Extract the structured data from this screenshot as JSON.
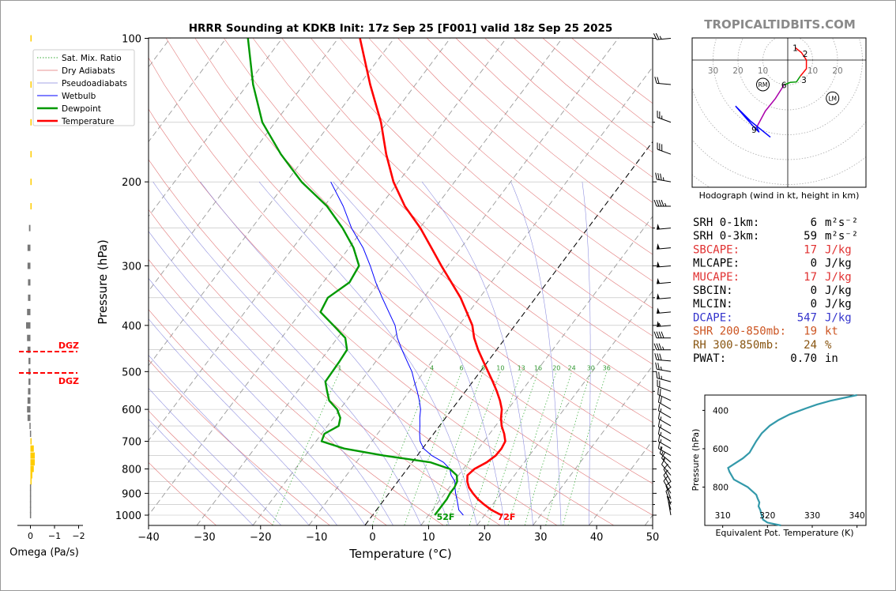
{
  "title": "HRRR Sounding at KDKB Init: 17z Sep 25 [F001] valid 18z Sep 25 2025",
  "brand": "TROPICALTIDBITS.COM",
  "colors": {
    "temperature": "#ff0000",
    "dewpoint": "#009900",
    "wetbulb": "#0000ff",
    "omega_up": "#ffcc00",
    "omega_down": "#777777",
    "dgz": "#ff0000",
    "theta_e": "#3399aa",
    "hodo_0_3": "#ff0000",
    "hodo_3_6": "#009900",
    "hodo_6_9": "#aa00aa",
    "hodo_9": "#0000ff"
  },
  "chart_data": [
    {
      "type": "line",
      "title": "HRRR Sounding at KDKB Init: 17z Sep 25 [F001] valid 18z Sep 25 2025",
      "xlabel": "Temperature (°C)",
      "ylabel": "Pressure (hPa)",
      "xlim": [
        -40,
        50
      ],
      "ylim": [
        1050,
        100
      ],
      "y_scale": "log",
      "skew": true,
      "grid": true,
      "xticks": [
        "−40",
        "−30",
        "−20",
        "−10",
        "0",
        "10",
        "20",
        "30",
        "40",
        "50"
      ],
      "yticks": [
        "100",
        "200",
        "300",
        "400",
        "500",
        "600",
        "700",
        "800",
        "900",
        "1000"
      ],
      "legend": {
        "position": "top-left",
        "entries": [
          "Sat. Mix. Ratio",
          "Dry Adiabats",
          "Pseudoadiabats",
          "Wetbulb",
          "Dewpoint",
          "Temperature"
        ]
      },
      "mixing_ratio_labels": [
        "1",
        "4",
        "6",
        "8",
        "10",
        "13",
        "16",
        "20",
        "24",
        "30",
        "36"
      ],
      "surface_labels": {
        "dewpoint": "52F",
        "temperature": "72F"
      },
      "series": [
        {
          "name": "Temperature",
          "points": [
            [
              1000,
              23
            ],
            [
              975,
              20.5
            ],
            [
              950,
              18.5
            ],
            [
              925,
              16.6
            ],
            [
              900,
              15
            ],
            [
              875,
              13.5
            ],
            [
              850,
              12.4
            ],
            [
              825,
              11.6
            ],
            [
              800,
              12
            ],
            [
              775,
              13.3
            ],
            [
              750,
              14
            ],
            [
              725,
              14.1
            ],
            [
              700,
              13.8
            ],
            [
              675,
              12.6
            ],
            [
              650,
              11.1
            ],
            [
              625,
              9.9
            ],
            [
              600,
              8.9
            ],
            [
              575,
              7.4
            ],
            [
              550,
              5.6
            ],
            [
              525,
              3.6
            ],
            [
              500,
              1.4
            ],
            [
              475,
              -0.9
            ],
            [
              450,
              -3.3
            ],
            [
              425,
              -5.6
            ],
            [
              400,
              -7.6
            ],
            [
              375,
              -10.4
            ],
            [
              350,
              -13.4
            ],
            [
              325,
              -17.1
            ],
            [
              300,
              -21.1
            ],
            [
              275,
              -25.3
            ],
            [
              250,
              -29.9
            ],
            [
              225,
              -35.6
            ],
            [
              200,
              -40.9
            ],
            [
              175,
              -45.9
            ],
            [
              150,
              -51.1
            ],
            [
              125,
              -58.1
            ],
            [
              100,
              -66.1
            ]
          ]
        },
        {
          "name": "Dewpoint",
          "points": [
            [
              1000,
              11.1
            ],
            [
              975,
              11.1
            ],
            [
              950,
              11.1
            ],
            [
              925,
              11.1
            ],
            [
              900,
              10.9
            ],
            [
              875,
              10.9
            ],
            [
              850,
              10.6
            ],
            [
              825,
              9.7
            ],
            [
              800,
              7.6
            ],
            [
              775,
              3.3
            ],
            [
              750,
              -6
            ],
            [
              725,
              -14
            ],
            [
              700,
              -19
            ],
            [
              675,
              -19.5
            ],
            [
              650,
              -18
            ],
            [
              625,
              -18.8
            ],
            [
              600,
              -20.5
            ],
            [
              575,
              -23.1
            ],
            [
              550,
              -24.7
            ],
            [
              525,
              -26.3
            ],
            [
              500,
              -26.4
            ],
            [
              475,
              -26.5
            ],
            [
              450,
              -26.7
            ],
            [
              425,
              -28.6
            ],
            [
              400,
              -32.4
            ],
            [
              375,
              -36.5
            ],
            [
              350,
              -37.1
            ],
            [
              325,
              -35.3
            ],
            [
              300,
              -35.8
            ],
            [
              275,
              -39.2
            ],
            [
              250,
              -43.8
            ],
            [
              225,
              -49.5
            ],
            [
              200,
              -57.3
            ],
            [
              175,
              -64.7
            ],
            [
              150,
              -72.3
            ],
            [
              125,
              -79
            ],
            [
              100,
              -86.1
            ]
          ]
        },
        {
          "name": "Wetbulb",
          "points": [
            [
              1000,
              16.2
            ],
            [
              975,
              14.7
            ],
            [
              950,
              13.8
            ],
            [
              925,
              12.9
            ],
            [
              900,
              11.9
            ],
            [
              875,
              11
            ],
            [
              850,
              10.2
            ],
            [
              825,
              8.7
            ],
            [
              800,
              7.6
            ],
            [
              775,
              5.6
            ],
            [
              750,
              2.6
            ],
            [
              725,
              0.2
            ],
            [
              700,
              -1.4
            ],
            [
              675,
              -2.5
            ],
            [
              650,
              -3.5
            ],
            [
              625,
              -4.6
            ],
            [
              600,
              -5.6
            ],
            [
              575,
              -7
            ],
            [
              550,
              -8.6
            ],
            [
              525,
              -10.4
            ],
            [
              500,
              -12.2
            ],
            [
              475,
              -14.5
            ],
            [
              450,
              -16.9
            ],
            [
              425,
              -19.3
            ],
            [
              400,
              -21.4
            ],
            [
              375,
              -24.3
            ],
            [
              350,
              -27.4
            ],
            [
              325,
              -30.6
            ],
            [
              300,
              -33.8
            ],
            [
              275,
              -37.5
            ],
            [
              250,
              -42.2
            ],
            [
              225,
              -46.6
            ],
            [
              200,
              -52.1
            ]
          ]
        }
      ]
    },
    {
      "type": "bar",
      "title": "",
      "xlabel": "Omega (Pa/s)",
      "xlim": [
        0.5,
        -2.5
      ],
      "xticks": [
        "0",
        "−1",
        "−2"
      ],
      "dgz_labels": [
        "DGZ",
        "DGZ"
      ],
      "dgz_pressures": [
        455,
        505
      ],
      "levels": [
        100,
        125,
        150,
        175,
        200,
        225,
        250,
        275,
        300,
        325,
        350,
        375,
        400,
        425,
        450,
        475,
        500,
        525,
        550,
        575,
        600,
        625,
        650,
        675,
        700,
        725,
        750,
        775,
        800,
        825,
        850,
        875,
        900,
        925,
        950,
        975,
        1000
      ],
      "values": [
        -0.05,
        -0.05,
        -0.05,
        -0.05,
        -0.05,
        -0.05,
        0.06,
        0.12,
        0.12,
        0.1,
        0.1,
        0.14,
        0.18,
        0.14,
        0.12,
        0.08,
        0.08,
        0.08,
        0.1,
        0.12,
        0.14,
        0.12,
        0.04,
        0.02,
        -0.04,
        -0.14,
        -0.18,
        -0.18,
        -0.14,
        -0.08,
        -0.04,
        0.02,
        0.02,
        0.02,
        0.02,
        0.02,
        0.02
      ]
    },
    {
      "type": "line",
      "title": "Hodograph (wind in kt, height in km)",
      "rings": [
        "30",
        "20",
        "10",
        "10",
        "20"
      ],
      "storm_motion_labels": [
        "RM",
        "LM"
      ],
      "height_labels": [
        "1",
        "2",
        "3",
        "6",
        "9"
      ],
      "series": [
        {
          "name": "0-3 km",
          "points": [
            [
              3,
              5
            ],
            [
              5.5,
              3
            ],
            [
              7.5,
              0
            ],
            [
              7.5,
              -3.5
            ],
            [
              5,
              -6.5
            ]
          ]
        },
        {
          "name": "3-6 km",
          "points": [
            [
              5,
              -6.5
            ],
            [
              3.5,
              -8.8
            ],
            [
              1,
              -9
            ],
            [
              -1.5,
              -10
            ]
          ]
        },
        {
          "name": "6-9 km",
          "points": [
            [
              -1.5,
              -10
            ],
            [
              -5,
              -15.5
            ],
            [
              -9,
              -20.5
            ],
            [
              -12.5,
              -27
            ]
          ]
        },
        {
          "name": "9+ km",
          "points": [
            [
              -12.5,
              -27
            ],
            [
              -11.5,
              -29
            ],
            [
              -13.5,
              -27
            ],
            [
              -17.5,
              -22.5
            ],
            [
              -21,
              -18.5
            ],
            [
              -15,
              -24.5
            ],
            [
              -7,
              -31
            ]
          ]
        }
      ]
    },
    {
      "type": "line",
      "title": "",
      "xlabel": "Equivalent Pot. Temperature (K)",
      "ylabel": "Pressure (hPa)",
      "xlim": [
        306,
        342
      ],
      "ylim": [
        1000,
        320
      ],
      "xticks": [
        "310",
        "320",
        "330",
        "340"
      ],
      "yticks": [
        "400",
        "600",
        "800"
      ],
      "series": [
        {
          "name": "theta-e",
          "points": [
            [
              1000,
              323
            ],
            [
              985,
              320
            ],
            [
              970,
              319
            ],
            [
              940,
              318.6
            ],
            [
              920,
              318.4
            ],
            [
              900,
              318
            ],
            [
              880,
              318.2
            ],
            [
              860,
              317.8
            ],
            [
              840,
              317.5
            ],
            [
              800,
              315.6
            ],
            [
              760,
              312.5
            ],
            [
              720,
              311.5
            ],
            [
              700,
              311.2
            ],
            [
              680,
              312.5
            ],
            [
              650,
              314.5
            ],
            [
              620,
              316
            ],
            [
              600,
              316.5
            ],
            [
              560,
              317.5
            ],
            [
              520,
              318.7
            ],
            [
              480,
              320.5
            ],
            [
              450,
              322.5
            ],
            [
              420,
              325
            ],
            [
              390,
              328.5
            ],
            [
              370,
              331
            ],
            [
              350,
              334
            ],
            [
              320,
              340
            ]
          ]
        }
      ]
    }
  ],
  "parameters": [
    {
      "label": "SRH 0-1km:",
      "value": "6",
      "unit": "m²s⁻²",
      "color": "#000000"
    },
    {
      "label": "SRH 0-3km:",
      "value": "59",
      "unit": "m²s⁻²",
      "color": "#000000"
    },
    {
      "label": "SBCAPE:",
      "value": "17",
      "unit": "J/kg",
      "color": "#e03030"
    },
    {
      "label": "MLCAPE:",
      "value": "0",
      "unit": "J/kg",
      "color": "#000000"
    },
    {
      "label": "MUCAPE:",
      "value": "17",
      "unit": "J/kg",
      "color": "#e03030"
    },
    {
      "label": "SBCIN:",
      "value": "0",
      "unit": "J/kg",
      "color": "#000000"
    },
    {
      "label": "MLCIN:",
      "value": "0",
      "unit": "J/kg",
      "color": "#000000"
    },
    {
      "label": "DCAPE:",
      "value": "547",
      "unit": "J/kg",
      "color": "#3333cc"
    },
    {
      "label": "SHR 200-850mb:",
      "value": "19",
      "unit": "kt",
      "color": "#cc5522"
    },
    {
      "label": "RH 300-850mb:",
      "value": "24",
      "unit": "%",
      "color": "#885511"
    },
    {
      "label": "PWAT:",
      "value": "0.70",
      "unit": "in",
      "color": "#000000"
    }
  ],
  "wind_barbs": [
    {
      "p": 100,
      "dir": 265,
      "kt": 25
    },
    {
      "p": 125,
      "dir": 275,
      "kt": 20
    },
    {
      "p": 150,
      "dir": 290,
      "kt": 25
    },
    {
      "p": 175,
      "dir": 290,
      "kt": 30
    },
    {
      "p": 200,
      "dir": 280,
      "kt": 35
    },
    {
      "p": 225,
      "dir": 270,
      "kt": 45
    },
    {
      "p": 250,
      "dir": 265,
      "kt": 50
    },
    {
      "p": 275,
      "dir": 265,
      "kt": 50
    },
    {
      "p": 300,
      "dir": 265,
      "kt": 50
    },
    {
      "p": 325,
      "dir": 265,
      "kt": 50
    },
    {
      "p": 350,
      "dir": 265,
      "kt": 50
    },
    {
      "p": 375,
      "dir": 265,
      "kt": 50
    },
    {
      "p": 400,
      "dir": 265,
      "kt": 55
    },
    {
      "p": 425,
      "dir": 270,
      "kt": 40
    },
    {
      "p": 450,
      "dir": 270,
      "kt": 35
    },
    {
      "p": 475,
      "dir": 275,
      "kt": 30
    },
    {
      "p": 500,
      "dir": 280,
      "kt": 25
    },
    {
      "p": 525,
      "dir": 285,
      "kt": 25
    },
    {
      "p": 550,
      "dir": 290,
      "kt": 20
    },
    {
      "p": 575,
      "dir": 295,
      "kt": 20
    },
    {
      "p": 600,
      "dir": 300,
      "kt": 20
    },
    {
      "p": 625,
      "dir": 300,
      "kt": 15
    },
    {
      "p": 650,
      "dir": 300,
      "kt": 15
    },
    {
      "p": 675,
      "dir": 300,
      "kt": 15
    },
    {
      "p": 700,
      "dir": 300,
      "kt": 15
    },
    {
      "p": 725,
      "dir": 300,
      "kt": 15
    },
    {
      "p": 750,
      "dir": 300,
      "kt": 15
    },
    {
      "p": 775,
      "dir": 310,
      "kt": 15
    },
    {
      "p": 800,
      "dir": 320,
      "kt": 15
    },
    {
      "p": 825,
      "dir": 320,
      "kt": 10
    },
    {
      "p": 850,
      "dir": 330,
      "kt": 10
    },
    {
      "p": 875,
      "dir": 330,
      "kt": 10
    },
    {
      "p": 900,
      "dir": 330,
      "kt": 10
    },
    {
      "p": 925,
      "dir": 340,
      "kt": 10
    },
    {
      "p": 950,
      "dir": 340,
      "kt": 10
    },
    {
      "p": 975,
      "dir": 345,
      "kt": 5
    },
    {
      "p": 1000,
      "dir": 350,
      "kt": 5
    }
  ]
}
